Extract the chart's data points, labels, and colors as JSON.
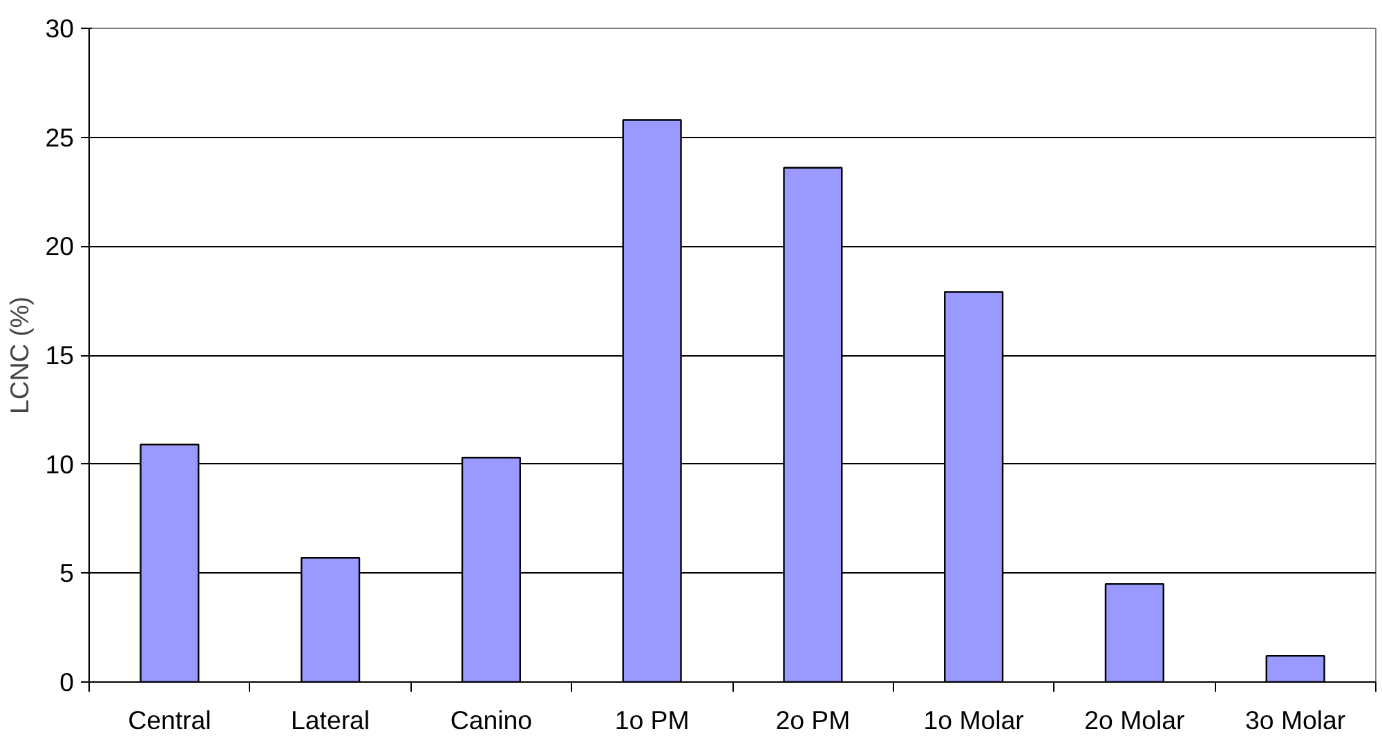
{
  "chart_data": {
    "type": "bar",
    "ylabel": "LCNC (%)",
    "categories": [
      "Central",
      "Lateral",
      "Canino",
      "1o PM",
      "2o PM",
      "1o Molar",
      "2o Molar",
      "3o Molar"
    ],
    "values": [
      10.9,
      5.7,
      10.3,
      25.8,
      23.6,
      17.9,
      4.5,
      1.2
    ],
    "color": "#9999ff",
    "ylim": [
      0,
      30
    ],
    "yticks": [
      0,
      5,
      10,
      15,
      20,
      25,
      30
    ],
    "grid": "y"
  }
}
